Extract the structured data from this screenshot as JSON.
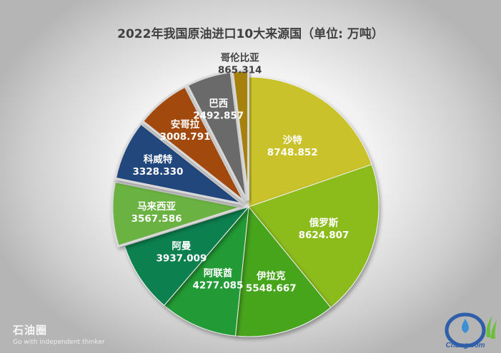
{
  "chart_data": {
    "type": "pie",
    "title": "2022年我国原油进口10大来源国（单位: 万吨）",
    "categories": [
      "沙特",
      "俄罗斯",
      "伊拉克",
      "阿联酋",
      "阿曼",
      "马来西亚",
      "科威特",
      "安哥拉",
      "巴西",
      "哥伦比亚"
    ],
    "values": [
      8748.852,
      8624.807,
      5548.667,
      4277.085,
      3937.009,
      3567.586,
      3328.33,
      3008.791,
      2492.857,
      865.314
    ],
    "value_labels": [
      "8748.852",
      "8624.807",
      "5548.667",
      "4277.085",
      "3937.009",
      "3567.586",
      "3328.330",
      "3008.791",
      "2492.857",
      "865.314"
    ],
    "colors": [
      "#c9c22a",
      "#8cbc1e",
      "#47a51f",
      "#249a36",
      "#0b8050",
      "#6bb243",
      "#23467c",
      "#a2490f",
      "#6b6b6b",
      "#a6810e"
    ],
    "start_angle_deg": 0,
    "direction": "clockwise",
    "legend": "none"
  },
  "watermark": {
    "brand": "石油圈",
    "slogan": "Go with independent thinker"
  },
  "logo": {
    "text": "CnLng.com",
    "colors": {
      "ring": "#2f5fa8",
      "drop": "#3c8fd4",
      "leaf": "#6cbf3a"
    }
  }
}
